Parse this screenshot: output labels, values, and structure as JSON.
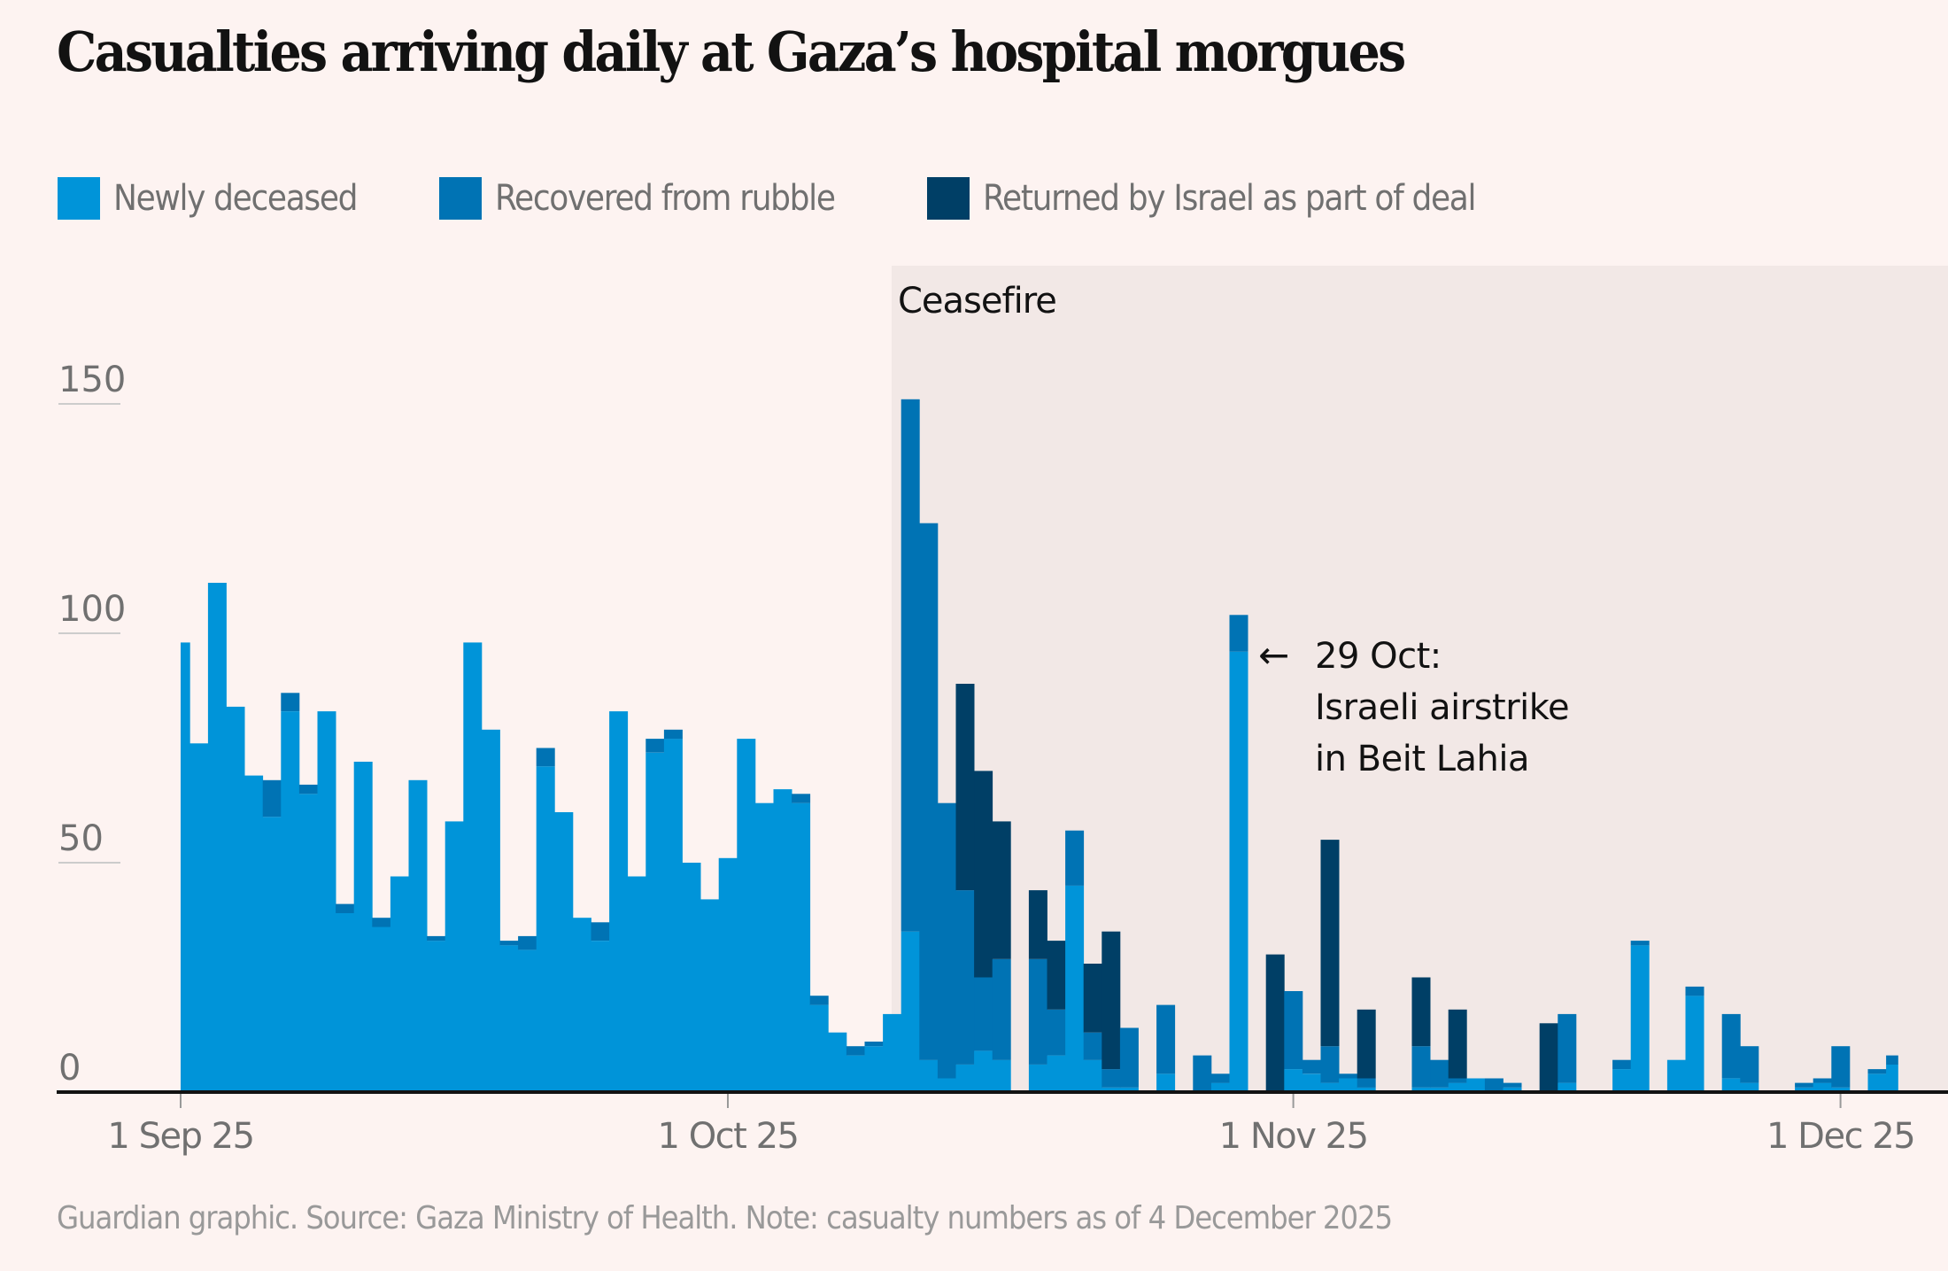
{
  "title": "Casualties arriving daily at Gaza’s hospital morgues",
  "source": "Guardian graphic. Source: Gaza Ministry of Health. Note: casualty numbers as of 4 December 2025",
  "colors": {
    "background": "#fdf3f1",
    "ceasefire_shade": "#f2e8e6",
    "newly_deceased": "#0094d9",
    "recovered_from_rubble": "#0073b4",
    "returned_by_israel": "#003f66",
    "text": "#121212",
    "axis_text": "#707070"
  },
  "chart_data": {
    "type": "bar",
    "stacked": true,
    "title": "Casualties arriving daily at Gaza’s hospital morgues",
    "xlabel": "",
    "ylabel": "",
    "ylim": [
      0,
      160
    ],
    "yticks": [
      0,
      50,
      100,
      150
    ],
    "grid": true,
    "legend_position": "top-left",
    "start_date": "2025-09-01",
    "end_date": "2025-12-04",
    "xticks": [
      {
        "label": "1 Sep 25",
        "day_index": 0
      },
      {
        "label": "1 Oct 25",
        "day_index": 30
      },
      {
        "label": "1 Nov 25",
        "day_index": 61
      },
      {
        "label": "1 Dec 25",
        "day_index": 91
      }
    ],
    "series": [
      {
        "name": "Newly deceased",
        "key": "newly_deceased",
        "values": [
          98,
          76,
          111,
          84,
          69,
          60,
          83,
          65,
          83,
          39,
          72,
          36,
          47,
          68,
          33,
          59,
          98,
          79,
          32,
          31,
          71,
          61,
          38,
          33,
          83,
          47,
          74,
          77,
          50,
          42,
          51,
          77,
          63,
          66,
          63,
          19,
          13,
          8,
          10,
          17,
          35,
          7,
          3,
          6,
          9,
          7,
          0,
          6,
          8,
          45,
          7,
          1,
          1,
          0,
          4,
          0,
          0,
          2,
          96,
          0,
          0,
          5,
          4,
          2,
          3,
          1,
          0,
          0,
          1,
          1,
          2,
          3,
          0,
          1,
          0,
          0,
          2,
          0,
          0,
          5,
          32,
          0,
          7,
          21,
          0,
          3,
          2,
          0,
          0,
          1,
          2,
          1,
          0,
          4,
          6
        ]
      },
      {
        "name": "Recovered from rubble",
        "key": "recovered_from_rubble",
        "values": [
          0,
          0,
          0,
          0,
          0,
          8,
          4,
          2,
          0,
          2,
          0,
          2,
          0,
          0,
          1,
          0,
          0,
          0,
          1,
          3,
          4,
          0,
          0,
          4,
          0,
          0,
          3,
          2,
          0,
          0,
          0,
          0,
          0,
          0,
          2,
          2,
          0,
          2,
          1,
          0,
          116,
          117,
          60,
          38,
          16,
          22,
          0,
          23,
          10,
          12,
          6,
          4,
          13,
          0,
          15,
          0,
          8,
          2,
          8,
          0,
          0,
          17,
          3,
          8,
          1,
          2,
          0,
          0,
          9,
          6,
          1,
          0,
          3,
          1,
          0,
          0,
          15,
          0,
          0,
          2,
          1,
          0,
          0,
          2,
          0,
          14,
          8,
          0,
          0,
          1,
          1,
          9,
          0,
          1,
          2
        ]
      },
      {
        "name": "Returned by Israel as part of deal",
        "key": "returned_by_israel",
        "values": [
          0,
          0,
          0,
          0,
          0,
          0,
          0,
          0,
          0,
          0,
          0,
          0,
          0,
          0,
          0,
          0,
          0,
          0,
          0,
          0,
          0,
          0,
          0,
          0,
          0,
          0,
          0,
          0,
          0,
          0,
          0,
          0,
          0,
          0,
          0,
          0,
          0,
          0,
          0,
          0,
          0,
          0,
          0,
          45,
          45,
          30,
          0,
          15,
          15,
          0,
          15,
          30,
          0,
          0,
          0,
          0,
          0,
          0,
          0,
          0,
          30,
          0,
          0,
          45,
          0,
          15,
          0,
          0,
          15,
          0,
          15,
          0,
          0,
          0,
          0,
          15,
          0,
          0,
          0,
          0,
          0,
          0,
          0,
          0,
          0,
          0,
          0,
          0,
          0,
          0,
          0,
          0,
          0,
          0,
          0
        ]
      }
    ],
    "annotations": [
      {
        "type": "shaded_region",
        "label": "Ceasefire",
        "from_day_index": 39.5,
        "to": "end"
      },
      {
        "type": "callout",
        "day_index": 58,
        "arrow": "←",
        "lines": [
          "29 Oct:",
          "Israeli airstrike",
          "in Beit Lahia"
        ]
      }
    ]
  }
}
